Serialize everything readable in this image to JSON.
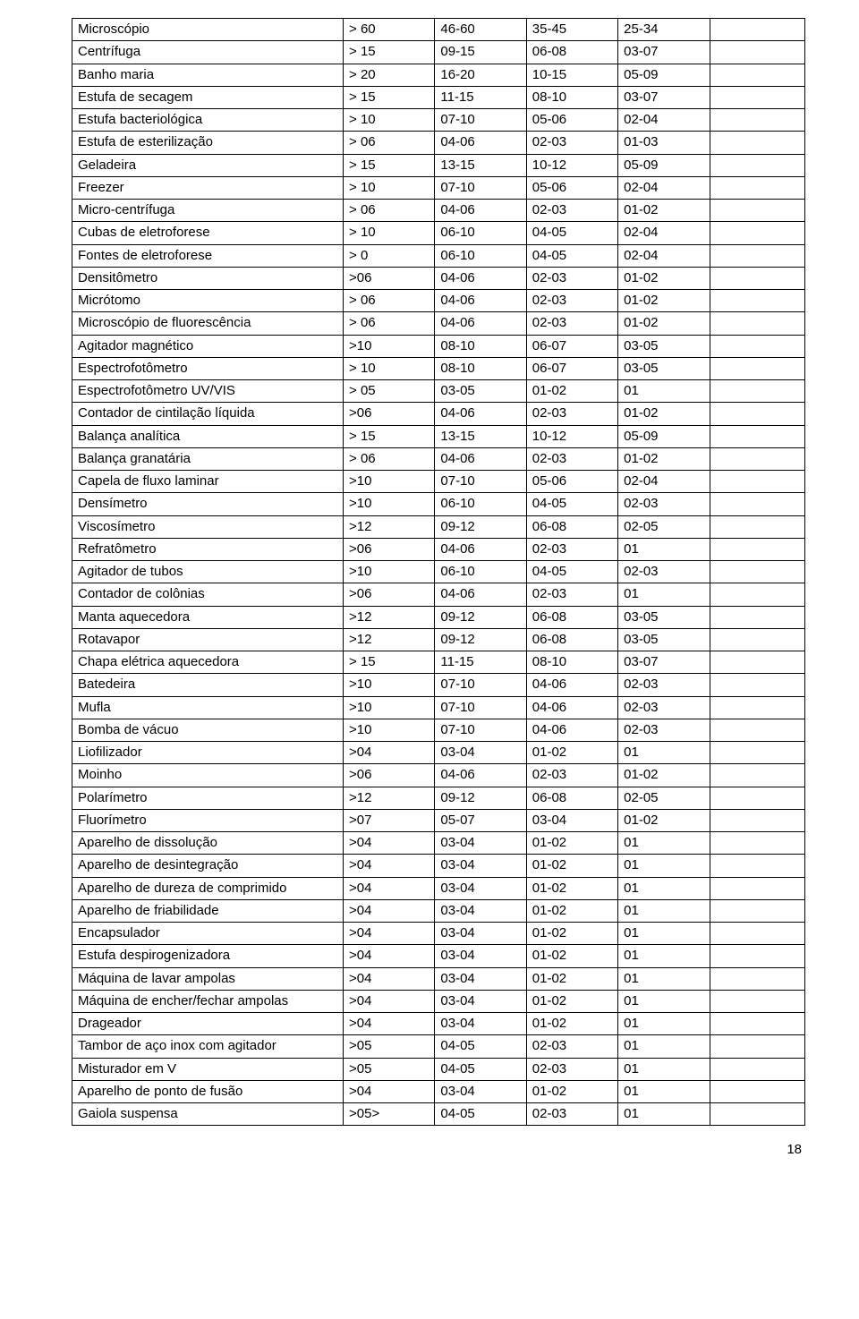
{
  "page_number": "18",
  "columns": [
    "name",
    "c1",
    "c2",
    "c3",
    "c4"
  ],
  "rows": [
    {
      "name": "Microscópio",
      "c1": "> 60",
      "c2": "46-60",
      "c3": "35-45",
      "c4": "25-34"
    },
    {
      "name": "Centrífuga",
      "c1": "> 15",
      "c2": "09-15",
      "c3": "06-08",
      "c4": "03-07"
    },
    {
      "name": "Banho maria",
      "c1": "> 20",
      "c2": "16-20",
      "c3": "10-15",
      "c4": "05-09"
    },
    {
      "name": "Estufa de secagem",
      "c1": "> 15",
      "c2": "11-15",
      "c3": "08-10",
      "c4": "03-07"
    },
    {
      "name": "Estufa bacteriológica",
      "c1": "> 10",
      "c2": "07-10",
      "c3": "05-06",
      "c4": "02-04"
    },
    {
      "name": "Estufa de esterilização",
      "c1": "> 06",
      "c2": "04-06",
      "c3": "02-03",
      "c4": "01-03"
    },
    {
      "name": "Geladeira",
      "c1": "> 15",
      "c2": "13-15",
      "c3": "10-12",
      "c4": "05-09"
    },
    {
      "name": "Freezer",
      "c1": "> 10",
      "c2": "07-10",
      "c3": "05-06",
      "c4": "02-04"
    },
    {
      "name": "Micro-centrífuga",
      "c1": "> 06",
      "c2": "04-06",
      "c3": "02-03",
      "c4": "01-02"
    },
    {
      "name": "Cubas de eletroforese",
      "c1": "> 10",
      "c2": "06-10",
      "c3": "04-05",
      "c4": "02-04"
    },
    {
      "name": "Fontes de eletroforese",
      "c1": "> 0",
      "c2": "06-10",
      "c3": "04-05",
      "c4": "02-04"
    },
    {
      "name": "Densitômetro",
      "c1": ">06",
      "c2": "04-06",
      "c3": "02-03",
      "c4": "01-02"
    },
    {
      "name": "Micrótomo",
      "c1": "> 06",
      "c2": "04-06",
      "c3": "02-03",
      "c4": "01-02"
    },
    {
      "name": "Microscópio de fluorescência",
      "c1": "> 06",
      "c2": "04-06",
      "c3": "02-03",
      "c4": "01-02"
    },
    {
      "name": "Agitador magnético",
      "c1": ">10",
      "c2": "08-10",
      "c3": "06-07",
      "c4": "03-05"
    },
    {
      "name": "Espectrofotômetro",
      "c1": "> 10",
      "c2": "08-10",
      "c3": "06-07",
      "c4": "03-05"
    },
    {
      "name": "Espectrofotômetro UV/VIS",
      "c1": "> 05",
      "c2": "03-05",
      "c3": "01-02",
      "c4": "01"
    },
    {
      "name": "Contador de cintilação líquida",
      "c1": ">06",
      "c2": "04-06",
      "c3": "02-03",
      "c4": "01-02"
    },
    {
      "name": "Balança analítica",
      "c1": "> 15",
      "c2": "13-15",
      "c3": "10-12",
      "c4": "05-09"
    },
    {
      "name": "Balança granatária",
      "c1": "> 06",
      "c2": "04-06",
      "c3": "02-03",
      "c4": "01-02"
    },
    {
      "name": "Capela de fluxo laminar",
      "c1": ">10",
      "c2": "07-10",
      "c3": "05-06",
      "c4": "02-04"
    },
    {
      "name": "Densímetro",
      "c1": ">10",
      "c2": "06-10",
      "c3": "04-05",
      "c4": "02-03"
    },
    {
      "name": "Viscosímetro",
      "c1": ">12",
      "c2": "09-12",
      "c3": "06-08",
      "c4": "02-05"
    },
    {
      "name": "Refratômetro",
      "c1": ">06",
      "c2": "04-06",
      "c3": "02-03",
      "c4": "01"
    },
    {
      "name": "Agitador de tubos",
      "c1": ">10",
      "c2": "06-10",
      "c3": "04-05",
      "c4": "02-03"
    },
    {
      "name": "Contador de colônias",
      "c1": ">06",
      "c2": "04-06",
      "c3": "02-03",
      "c4": "01"
    },
    {
      "name": "Manta aquecedora",
      "c1": ">12",
      "c2": "09-12",
      "c3": "06-08",
      "c4": "03-05"
    },
    {
      "name": "Rotavapor",
      "c1": ">12",
      "c2": "09-12",
      "c3": "06-08",
      "c4": "03-05"
    },
    {
      "name": "Chapa elétrica aquecedora",
      "c1": "> 15",
      "c2": "11-15",
      "c3": "08-10",
      "c4": "03-07"
    },
    {
      "name": "Batedeira",
      "c1": ">10",
      "c2": "07-10",
      "c3": "04-06",
      "c4": "02-03"
    },
    {
      "name": "Mufla",
      "c1": ">10",
      "c2": "07-10",
      "c3": "04-06",
      "c4": "02-03"
    },
    {
      "name": "Bomba de vácuo",
      "c1": ">10",
      "c2": "07-10",
      "c3": "04-06",
      "c4": "02-03"
    },
    {
      "name": "Liofilizador",
      "c1": ">04",
      "c2": "03-04",
      "c3": "01-02",
      "c4": "01"
    },
    {
      "name": "Moinho",
      "c1": ">06",
      "c2": "04-06",
      "c3": "02-03",
      "c4": "01-02"
    },
    {
      "name": "Polarímetro",
      "c1": ">12",
      "c2": "09-12",
      "c3": "06-08",
      "c4": "02-05"
    },
    {
      "name": "Fluorímetro",
      "c1": ">07",
      "c2": "05-07",
      "c3": "03-04",
      "c4": "01-02"
    },
    {
      "name": "Aparelho de dissolução",
      "c1": ">04",
      "c2": "03-04",
      "c3": "01-02",
      "c4": "01"
    },
    {
      "name": "Aparelho de desintegração",
      "c1": ">04",
      "c2": "03-04",
      "c3": "01-02",
      "c4": "01"
    },
    {
      "name": "Aparelho de dureza de comprimido",
      "c1": ">04",
      "c2": "03-04",
      "c3": "01-02",
      "c4": "01"
    },
    {
      "name": "Aparelho de friabilidade",
      "c1": ">04",
      "c2": "03-04",
      "c3": "01-02",
      "c4": "01"
    },
    {
      "name": "Encapsulador",
      "c1": ">04",
      "c2": "03-04",
      "c3": "01-02",
      "c4": "01"
    },
    {
      "name": "Estufa despirogenizadora",
      "c1": ">04",
      "c2": "03-04",
      "c3": "01-02",
      "c4": "01"
    },
    {
      "name": "Máquina de lavar ampolas",
      "c1": ">04",
      "c2": "03-04",
      "c3": "01-02",
      "c4": "01"
    },
    {
      "name": "Máquina de encher/fechar ampolas",
      "c1": ">04",
      "c2": "03-04",
      "c3": "01-02",
      "c4": "01"
    },
    {
      "name": "Drageador",
      "c1": ">04",
      "c2": "03-04",
      "c3": "01-02",
      "c4": "01"
    },
    {
      "name": "Tambor de aço inox com agitador",
      "c1": ">05",
      "c2": "04-05",
      "c3": "02-03",
      "c4": "01"
    },
    {
      "name": "Misturador em V",
      "c1": ">05",
      "c2": "04-05",
      "c3": "02-03",
      "c4": "01"
    },
    {
      "name": "Aparelho de ponto de fusão",
      "c1": ">04",
      "c2": "03-04",
      "c3": "01-02",
      "c4": "01"
    },
    {
      "name": "Gaiola suspensa",
      "c1": ">05>",
      "c2": "04-05",
      "c3": "02-03",
      "c4": "01"
    }
  ]
}
